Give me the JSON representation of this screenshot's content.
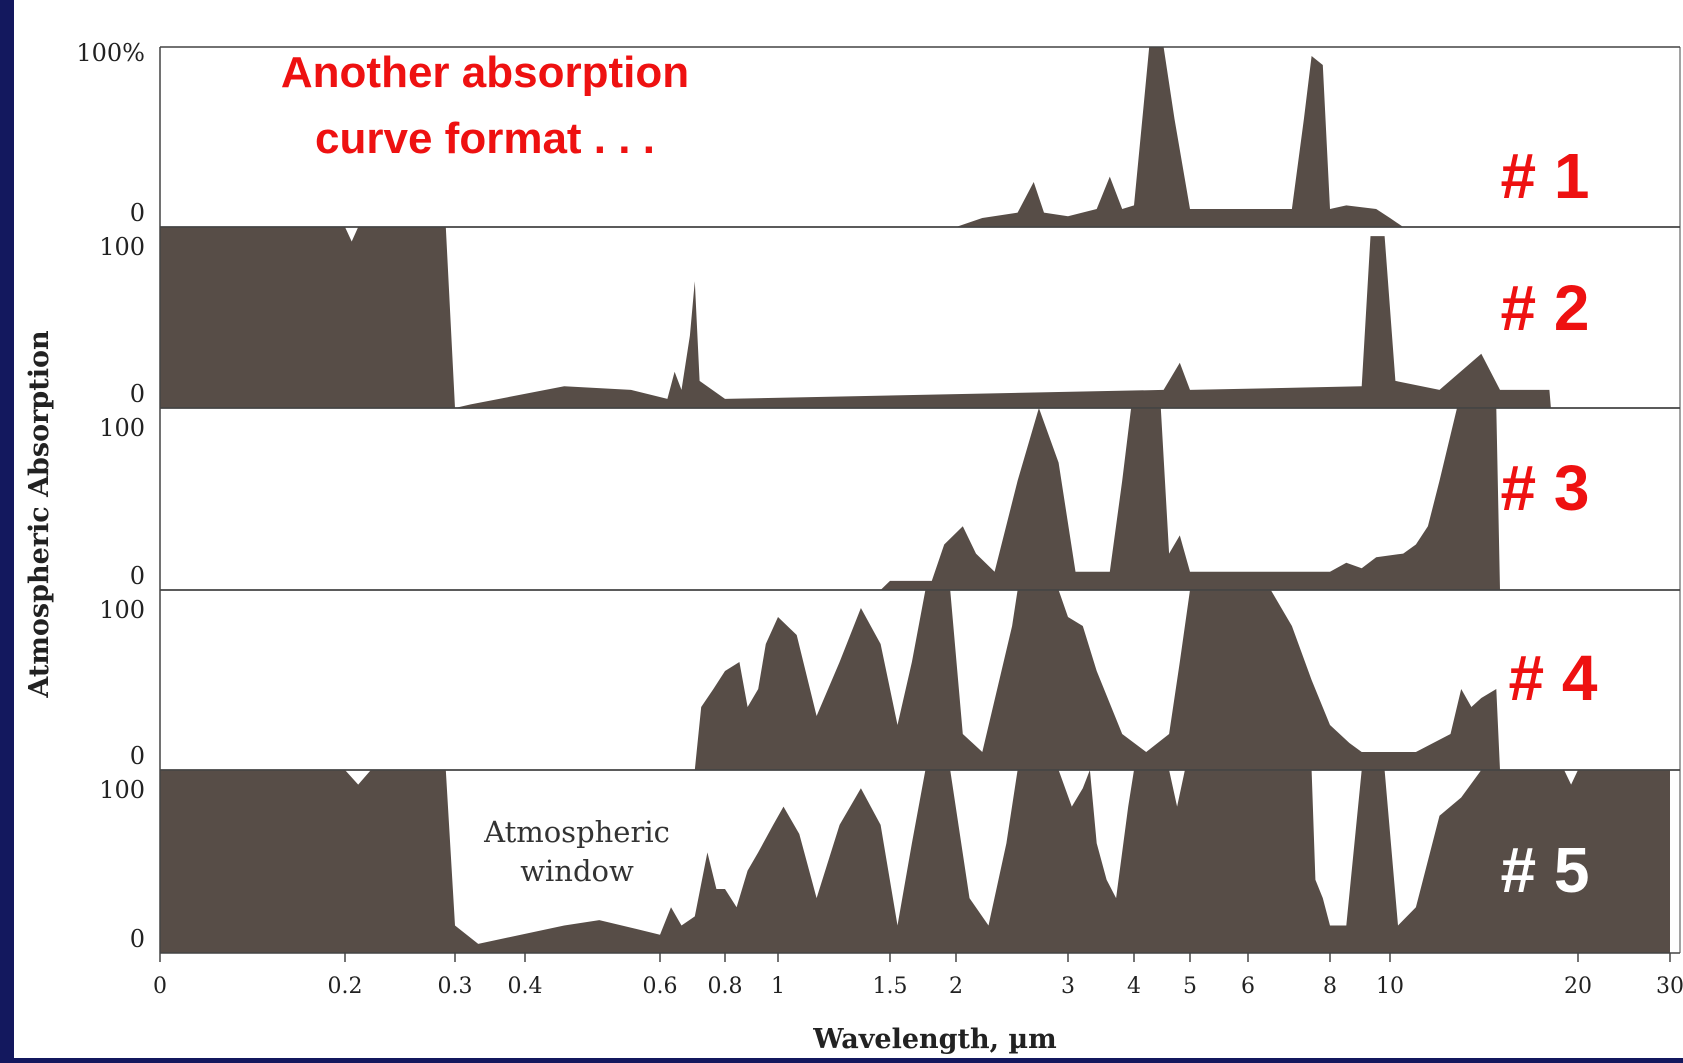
{
  "colors": {
    "frame": "#13185e",
    "plot_bg": "#ffffff",
    "fill": "#574d47",
    "badge_red": "#ee1111",
    "badge_white": "#ffffff",
    "annotation": "#ee1111"
  },
  "annotation": {
    "line1": "Another absorption",
    "line2": "curve format . . ."
  },
  "window_label": {
    "line1": "Atmospheric",
    "line2": "window"
  },
  "chart_data": {
    "type": "area",
    "xlabel": "Wavelength, µm",
    "ylabel": "Atmospheric Absorption",
    "x_scale": "nonlinear",
    "x_ticks": [
      "0",
      "0.2",
      "0.3",
      "0.4",
      "0.6",
      "0.8",
      "1",
      "1.5",
      "2",
      "3",
      "4",
      "5",
      "6",
      "8",
      "10",
      "20",
      "30"
    ],
    "panels": [
      {
        "name": "# 1",
        "y_top_label": "100%",
        "y_bottom_label": "0",
        "points": [
          [
            2.0,
            0
          ],
          [
            2.2,
            5
          ],
          [
            2.5,
            8
          ],
          [
            2.65,
            25
          ],
          [
            2.75,
            8
          ],
          [
            3.0,
            6
          ],
          [
            3.4,
            10
          ],
          [
            3.6,
            28
          ],
          [
            3.8,
            10
          ],
          [
            4.0,
            12
          ],
          [
            4.15,
            65
          ],
          [
            4.25,
            100
          ],
          [
            4.5,
            100
          ],
          [
            4.7,
            60
          ],
          [
            5.0,
            10
          ],
          [
            6.0,
            10
          ],
          [
            7.0,
            10
          ],
          [
            7.3,
            60
          ],
          [
            7.5,
            95
          ],
          [
            7.8,
            90
          ],
          [
            8.0,
            10
          ],
          [
            8.5,
            12
          ],
          [
            9.5,
            10
          ],
          [
            10.0,
            5
          ],
          [
            10.5,
            0
          ]
        ]
      },
      {
        "name": "# 2",
        "y_top_label": "100",
        "y_bottom_label": "0",
        "points": [
          [
            0,
            100
          ],
          [
            0.2,
            100
          ],
          [
            0.205,
            92
          ],
          [
            0.21,
            100
          ],
          [
            0.29,
            100
          ],
          [
            0.3,
            0
          ],
          [
            0.32,
            2
          ],
          [
            0.45,
            12
          ],
          [
            0.55,
            10
          ],
          [
            0.62,
            5
          ],
          [
            0.64,
            20
          ],
          [
            0.66,
            10
          ],
          [
            0.685,
            40
          ],
          [
            0.7,
            70
          ],
          [
            0.715,
            15
          ],
          [
            0.8,
            5
          ],
          [
            4.5,
            10
          ],
          [
            4.8,
            25
          ],
          [
            5.0,
            10
          ],
          [
            9.0,
            12
          ],
          [
            9.3,
            95
          ],
          [
            9.8,
            95
          ],
          [
            10.2,
            15
          ],
          [
            12.0,
            10
          ],
          [
            14.0,
            30
          ],
          [
            15.0,
            10
          ],
          [
            18.0,
            10
          ],
          [
            18.1,
            0
          ]
        ]
      },
      {
        "name": "# 3",
        "y_top_label": "100",
        "y_bottom_label": "0",
        "points": [
          [
            1.45,
            0
          ],
          [
            1.5,
            5
          ],
          [
            1.8,
            5
          ],
          [
            1.9,
            25
          ],
          [
            2.05,
            35
          ],
          [
            2.15,
            20
          ],
          [
            2.3,
            10
          ],
          [
            2.5,
            60
          ],
          [
            2.7,
            100
          ],
          [
            2.9,
            70
          ],
          [
            3.1,
            10
          ],
          [
            3.6,
            10
          ],
          [
            3.8,
            60
          ],
          [
            3.95,
            100
          ],
          [
            4.45,
            100
          ],
          [
            4.6,
            20
          ],
          [
            4.8,
            30
          ],
          [
            5.0,
            10
          ],
          [
            8.0,
            10
          ],
          [
            8.5,
            15
          ],
          [
            9.0,
            12
          ],
          [
            9.5,
            18
          ],
          [
            10.5,
            20
          ],
          [
            11.0,
            25
          ],
          [
            11.5,
            35
          ],
          [
            12.0,
            60
          ],
          [
            12.8,
            100
          ],
          [
            14.8,
            100
          ],
          [
            15.0,
            0
          ]
        ]
      },
      {
        "name": "# 4",
        "y_top_label": "100",
        "y_bottom_label": "0",
        "points": [
          [
            0.7,
            0
          ],
          [
            0.72,
            35
          ],
          [
            0.76,
            45
          ],
          [
            0.8,
            55
          ],
          [
            0.85,
            60
          ],
          [
            0.88,
            35
          ],
          [
            0.92,
            45
          ],
          [
            0.95,
            70
          ],
          [
            1.0,
            85
          ],
          [
            1.07,
            75
          ],
          [
            1.15,
            30
          ],
          [
            1.25,
            60
          ],
          [
            1.35,
            90
          ],
          [
            1.45,
            70
          ],
          [
            1.55,
            25
          ],
          [
            1.65,
            60
          ],
          [
            1.75,
            100
          ],
          [
            1.95,
            100
          ],
          [
            2.05,
            20
          ],
          [
            2.2,
            10
          ],
          [
            2.45,
            80
          ],
          [
            2.5,
            100
          ],
          [
            2.9,
            100
          ],
          [
            3.0,
            85
          ],
          [
            3.2,
            80
          ],
          [
            3.4,
            55
          ],
          [
            3.8,
            20
          ],
          [
            4.2,
            10
          ],
          [
            4.6,
            20
          ],
          [
            4.8,
            60
          ],
          [
            5.0,
            100
          ],
          [
            6.5,
            100
          ],
          [
            7.0,
            80
          ],
          [
            7.5,
            50
          ],
          [
            8.0,
            25
          ],
          [
            8.6,
            15
          ],
          [
            9.0,
            10
          ],
          [
            11.0,
            10
          ],
          [
            12.5,
            20
          ],
          [
            13.0,
            45
          ],
          [
            13.5,
            35
          ],
          [
            14.0,
            40
          ],
          [
            14.8,
            45
          ],
          [
            15.0,
            0
          ]
        ]
      },
      {
        "name": "# 5",
        "y_top_label": "100",
        "y_bottom_label": "0",
        "points": [
          [
            0,
            100
          ],
          [
            0.2,
            100
          ],
          [
            0.21,
            92
          ],
          [
            0.22,
            100
          ],
          [
            0.29,
            100
          ],
          [
            0.3,
            15
          ],
          [
            0.33,
            5
          ],
          [
            0.45,
            15
          ],
          [
            0.5,
            18
          ],
          [
            0.6,
            10
          ],
          [
            0.63,
            25
          ],
          [
            0.66,
            15
          ],
          [
            0.7,
            20
          ],
          [
            0.74,
            55
          ],
          [
            0.77,
            35
          ],
          [
            0.8,
            35
          ],
          [
            0.84,
            25
          ],
          [
            0.88,
            45
          ],
          [
            0.92,
            55
          ],
          [
            0.98,
            70
          ],
          [
            1.02,
            80
          ],
          [
            1.08,
            65
          ],
          [
            1.15,
            30
          ],
          [
            1.25,
            70
          ],
          [
            1.35,
            90
          ],
          [
            1.45,
            70
          ],
          [
            1.55,
            15
          ],
          [
            1.65,
            60
          ],
          [
            1.75,
            100
          ],
          [
            1.95,
            100
          ],
          [
            2.1,
            30
          ],
          [
            2.25,
            15
          ],
          [
            2.4,
            60
          ],
          [
            2.5,
            100
          ],
          [
            2.9,
            100
          ],
          [
            3.05,
            80
          ],
          [
            3.2,
            90
          ],
          [
            3.3,
            100
          ],
          [
            3.4,
            60
          ],
          [
            3.55,
            40
          ],
          [
            3.7,
            30
          ],
          [
            3.9,
            80
          ],
          [
            4.0,
            100
          ],
          [
            4.6,
            100
          ],
          [
            4.75,
            80
          ],
          [
            4.9,
            100
          ],
          [
            7.5,
            100
          ],
          [
            7.6,
            40
          ],
          [
            7.8,
            30
          ],
          [
            8.0,
            15
          ],
          [
            8.5,
            15
          ],
          [
            9.0,
            100
          ],
          [
            9.8,
            100
          ],
          [
            10.3,
            15
          ],
          [
            11.0,
            25
          ],
          [
            12.0,
            75
          ],
          [
            13.0,
            85
          ],
          [
            14.0,
            100
          ],
          [
            19.0,
            100
          ],
          [
            19.5,
            92
          ],
          [
            20.0,
            100
          ],
          [
            30.0,
            100
          ]
        ]
      }
    ],
    "badges": [
      "# 1",
      "# 2",
      "# 3",
      "# 4",
      "# 5"
    ]
  }
}
